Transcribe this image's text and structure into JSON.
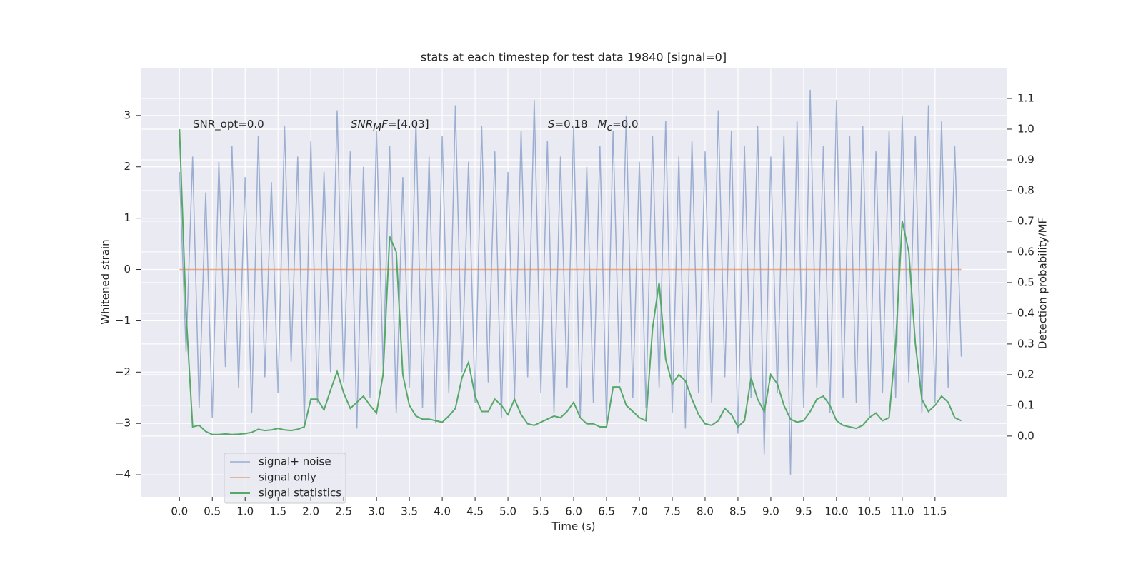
{
  "chart_data": {
    "type": "line",
    "title": "stats at each timestep for test data 19840 [signal=0]",
    "xlabel": "Time (s)",
    "ylabel": "Whitened strain",
    "y2label": "Detection probability/MF",
    "xlim": [
      -0.59,
      12.6
    ],
    "ylim": [
      -4.43,
      3.93
    ],
    "y2lim": [
      -0.198,
      1.2
    ],
    "xticks": [
      {
        "value": 0,
        "label": "0.0"
      },
      0.5,
      {
        "value": 1,
        "label": "1.0"
      },
      1.5,
      {
        "value": 2,
        "label": "2.0"
      },
      2.5,
      {
        "value": 3,
        "label": "3.0"
      },
      3.5,
      {
        "value": 4,
        "label": "4.0"
      },
      4.5,
      {
        "value": 5,
        "label": "5.0"
      },
      5.5,
      {
        "value": 6,
        "label": "6.0"
      },
      6.5,
      {
        "value": 7,
        "label": "7.0"
      },
      7.5,
      {
        "value": 8,
        "label": "8.0"
      },
      8.5,
      {
        "value": 9,
        "label": "9.0"
      },
      9.5,
      {
        "value": 10,
        "label": "10.0"
      },
      10.5,
      {
        "value": 11,
        "label": "11.0"
      },
      11.5
    ],
    "yticks": [
      {
        "value": -4,
        "label": "−4"
      },
      {
        "value": -3,
        "label": "−3"
      },
      {
        "value": -2,
        "label": "−2"
      },
      {
        "value": -1,
        "label": "−1"
      },
      0,
      1,
      2,
      3
    ],
    "y2ticks": [
      {
        "value": 0,
        "label": "0.0"
      },
      0.1,
      0.2,
      0.3,
      0.4,
      0.5,
      0.6,
      0.7,
      0.8,
      0.9,
      {
        "value": 1,
        "label": "1.0"
      },
      1.1
    ],
    "grid": true,
    "legend": "lower left",
    "annotations": [
      {
        "parts": [
          "SNR_opt=0.0"
        ]
      },
      {
        "parts": [
          "SNR",
          "M",
          "F",
          "=[4.03]"
        ]
      },
      {
        "parts": [
          "S",
          "=0.18",
          "M",
          "c",
          "=0.0"
        ]
      }
    ],
    "x": [
      0,
      0.1,
      0.2,
      0.3,
      0.4,
      0.5,
      0.6,
      0.7,
      0.8,
      0.9,
      1,
      1.1,
      1.2,
      1.3,
      1.4,
      1.5,
      1.6,
      1.7,
      1.8,
      1.9,
      2,
      2.1,
      2.2,
      2.3,
      2.4,
      2.5,
      2.6,
      2.7,
      2.8,
      2.9,
      3,
      3.1,
      3.2,
      3.3,
      3.4,
      3.5,
      3.6,
      3.7,
      3.8,
      3.9,
      4,
      4.1,
      4.2,
      4.3,
      4.4,
      4.5,
      4.6,
      4.7,
      4.8,
      4.9,
      5,
      5.1,
      5.2,
      5.3,
      5.4,
      5.5,
      5.6,
      5.7,
      5.8,
      5.9,
      6,
      6.1,
      6.2,
      6.3,
      6.4,
      6.5,
      6.6,
      6.7,
      6.8,
      6.9,
      7,
      7.1,
      7.2,
      7.3,
      7.4,
      7.5,
      7.6,
      7.7,
      7.8,
      7.9,
      8,
      8.1,
      8.2,
      8.3,
      8.4,
      8.5,
      8.6,
      8.7,
      8.8,
      8.9,
      9,
      9.1,
      9.2,
      9.3,
      9.4,
      9.5,
      9.6,
      9.7,
      9.8,
      9.9,
      10,
      10.1,
      10.2,
      10.3,
      10.4,
      10.5,
      10.6,
      10.7,
      10.8,
      10.9,
      11,
      11.1,
      11.2,
      11.3,
      11.4,
      11.5,
      11.6,
      11.7,
      11.8,
      11.9
    ],
    "series": [
      {
        "name": "signal+ noise",
        "color": "#4c72b0",
        "values": [
          1.9,
          -1.6,
          2.2,
          -2.7,
          1.5,
          -2.9,
          2.1,
          -1.9,
          2.4,
          -2.3,
          1.8,
          -2.8,
          2.6,
          -2.1,
          1.7,
          -2.4,
          2.8,
          -1.8,
          2.2,
          -3.0,
          2.5,
          -2.6,
          1.9,
          -2.0,
          3.1,
          -2.2,
          2.3,
          -3.1,
          2.0,
          -2.5,
          2.7,
          -1.9,
          2.4,
          -2.8,
          1.8,
          -2.3,
          2.9,
          -2.7,
          2.2,
          -3.0,
          2.6,
          -2.4,
          3.2,
          -2.0,
          2.1,
          -2.6,
          2.8,
          -2.2,
          2.3,
          -2.9,
          1.9,
          -2.5,
          2.7,
          -2.1,
          3.3,
          -2.4,
          2.5,
          -2.8,
          2.2,
          -2.3,
          2.8,
          -2.9,
          2.0,
          -2.6,
          2.4,
          -3.0,
          2.7,
          -2.2,
          3.0,
          -2.5,
          2.1,
          -2.7,
          2.6,
          -2.3,
          2.9,
          -2.8,
          2.2,
          -3.1,
          2.5,
          -2.4,
          2.3,
          -2.6,
          3.1,
          -2.1,
          2.7,
          -3.2,
          2.4,
          -2.5,
          2.8,
          -3.6,
          2.2,
          -2.4,
          2.6,
          -4.0,
          2.9,
          -2.7,
          3.5,
          -2.3,
          2.4,
          -2.8,
          3.3,
          -2.5,
          2.6,
          -2.6,
          2.8,
          -2.9,
          2.3,
          -2.4,
          2.7,
          -2.5,
          3.0,
          -2.2,
          2.6,
          -2.8,
          3.2,
          -2.6,
          2.9,
          -2.3,
          2.4,
          -1.7
        ]
      },
      {
        "name": "signal only",
        "color": "#dd8452",
        "x": [
          0,
          11.9
        ],
        "values": [
          0,
          0
        ]
      },
      {
        "name": "signal statistics",
        "color": "#55a868",
        "axis": "y2",
        "values": [
          1.0,
          0.4,
          0.03,
          0.035,
          0.015,
          0.005,
          0.005,
          0.007,
          0.005,
          0.006,
          0.008,
          0.012,
          0.022,
          0.018,
          0.02,
          0.025,
          0.02,
          0.018,
          0.022,
          0.03,
          0.12,
          0.12,
          0.085,
          0.15,
          0.21,
          0.14,
          0.09,
          0.11,
          0.13,
          0.1,
          0.075,
          0.2,
          0.65,
          0.6,
          0.2,
          0.1,
          0.065,
          0.055,
          0.055,
          0.05,
          0.045,
          0.065,
          0.09,
          0.19,
          0.24,
          0.13,
          0.08,
          0.08,
          0.12,
          0.1,
          0.07,
          0.12,
          0.07,
          0.04,
          0.035,
          0.045,
          0.055,
          0.065,
          0.06,
          0.08,
          0.11,
          0.06,
          0.04,
          0.04,
          0.03,
          0.03,
          0.16,
          0.16,
          0.1,
          0.08,
          0.06,
          0.05,
          0.35,
          0.5,
          0.25,
          0.17,
          0.2,
          0.18,
          0.12,
          0.07,
          0.04,
          0.035,
          0.05,
          0.09,
          0.07,
          0.03,
          0.05,
          0.19,
          0.12,
          0.08,
          0.2,
          0.17,
          0.1,
          0.055,
          0.045,
          0.05,
          0.08,
          0.12,
          0.13,
          0.1,
          0.05,
          0.035,
          0.03,
          0.025,
          0.035,
          0.06,
          0.075,
          0.05,
          0.06,
          0.3,
          0.7,
          0.6,
          0.3,
          0.12,
          0.08,
          0.1,
          0.13,
          0.11,
          0.06,
          0.05
        ]
      }
    ]
  }
}
